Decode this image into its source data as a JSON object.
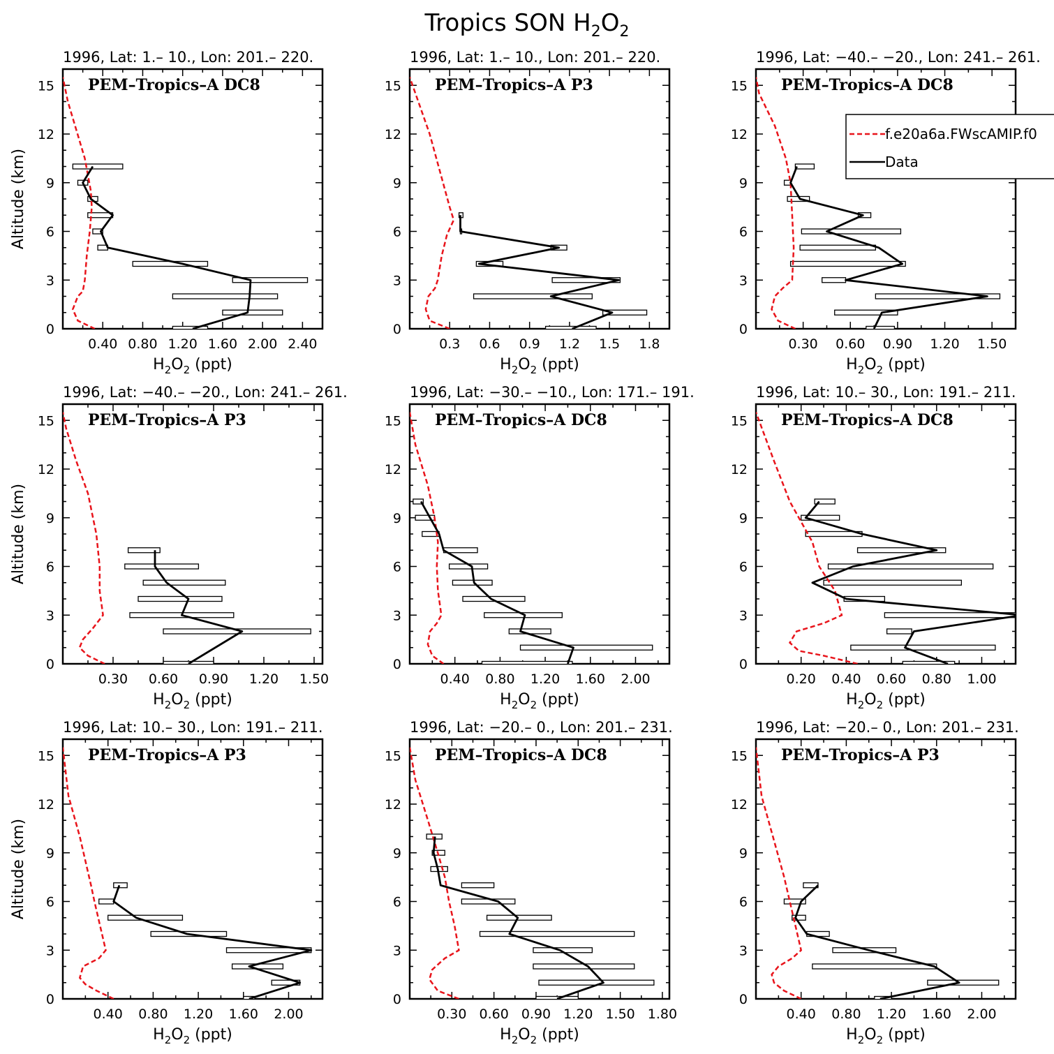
{
  "figure": {
    "title_main": "Tropics SON H",
    "title_sub1": "2",
    "title_mid": "O",
    "title_sub2": "2",
    "xlabel": {
      "pre": "H",
      "s1": "2",
      "mid": "O",
      "s2": "2",
      "post": " (ppt)"
    },
    "ylabel": "Altitude (km)",
    "legend": {
      "model": "f.e20a6a.FWscAMIP.f0",
      "data": "Data"
    },
    "colors": {
      "model": "#e8141b",
      "data": "#000000",
      "axis": "#000000"
    }
  },
  "chart_data": [
    {
      "type": "line",
      "subtitle": "1996, Lat:  1.–  10., Lon: 201.– 220.",
      "campaign": "PEM–Tropics–A DC8",
      "xticks": [
        0.4,
        0.8,
        1.2,
        1.6,
        2.0,
        2.4
      ],
      "xtick_labels": [
        "0.40",
        "0.80",
        "1.20",
        "1.60",
        "2.00",
        "2.40"
      ],
      "xlim": [
        0,
        2.6
      ],
      "ylim": [
        0,
        16
      ],
      "model": {
        "x": [
          0.32,
          0.15,
          0.1,
          0.15,
          0.2,
          0.22,
          0.24,
          0.27,
          0.29,
          0.28,
          0.22,
          0.05,
          0.0
        ],
        "y": [
          0,
          0.5,
          1.2,
          2.0,
          2.3,
          3.0,
          4.5,
          6.0,
          7.5,
          8.5,
          10.5,
          14.0,
          15.5
        ]
      },
      "data": {
        "y": [
          0,
          1,
          2,
          3,
          4,
          5,
          6,
          7,
          8,
          9,
          10
        ],
        "x": [
          1.3,
          1.85,
          1.87,
          1.88,
          1.2,
          0.45,
          0.38,
          0.5,
          0.28,
          0.2,
          0.3
        ],
        "box_lo": [
          1.1,
          1.6,
          1.1,
          1.7,
          0.7,
          0.35,
          0.3,
          0.25,
          0.25,
          0.15,
          0.1
        ],
        "box_hi": [
          1.45,
          2.2,
          2.15,
          2.45,
          1.45,
          0.45,
          0.4,
          0.5,
          0.35,
          0.25,
          0.6
        ]
      }
    },
    {
      "type": "line",
      "subtitle": "1996, Lat:  1.–  10., Lon: 201.– 220.",
      "campaign": "PEM–Tropics–A P3",
      "xticks": [
        0.3,
        0.6,
        0.9,
        1.2,
        1.5,
        1.8
      ],
      "xtick_labels": [
        "0.3",
        "0.6",
        "0.9",
        "1.2",
        "1.5",
        "1.8"
      ],
      "xlim": [
        0,
        1.95
      ],
      "ylim": [
        0,
        16
      ],
      "model": {
        "x": [
          0.3,
          0.15,
          0.12,
          0.14,
          0.19,
          0.21,
          0.24,
          0.28,
          0.33,
          0.3,
          0.25,
          0.15,
          0.0
        ],
        "y": [
          0,
          0.5,
          1.2,
          2.0,
          2.5,
          3.0,
          4.5,
          5.8,
          6.7,
          7.5,
          9.0,
          12.0,
          15.5
        ]
      },
      "data": {
        "y": [
          0,
          1,
          2,
          3,
          4,
          5,
          6,
          7
        ],
        "x": [
          1.22,
          1.52,
          1.06,
          1.57,
          0.52,
          1.12,
          0.38,
          0.38
        ],
        "box_lo": [
          1.02,
          1.45,
          0.48,
          1.07,
          0.5,
          1.06,
          0.38,
          0.37
        ],
        "box_hi": [
          1.4,
          1.78,
          1.37,
          1.58,
          0.7,
          1.18,
          0.38,
          0.4
        ]
      }
    },
    {
      "type": "line",
      "subtitle": "1996, Lat: −40.– −20., Lon: 241.– 261.",
      "campaign": "PEM–Tropics–A DC8",
      "xticks": [
        0.3,
        0.6,
        0.9,
        1.2,
        1.5
      ],
      "xtick_labels": [
        "0.30",
        "0.60",
        "0.90",
        "1.20",
        "1.50"
      ],
      "xlim": [
        0,
        1.65
      ],
      "ylim": [
        0,
        16
      ],
      "model": {
        "x": [
          0.25,
          0.14,
          0.1,
          0.12,
          0.17,
          0.23,
          0.24,
          0.23,
          0.22,
          0.19,
          0.12,
          0.02,
          0.0
        ],
        "y": [
          0,
          0.5,
          1.2,
          2.0,
          2.5,
          3.0,
          5.0,
          7.0,
          9.0,
          10.5,
          12.5,
          14.5,
          15.5
        ]
      },
      "data": {
        "y": [
          0,
          1,
          2,
          3,
          4,
          5,
          6,
          7,
          8,
          9,
          10
        ],
        "x": [
          0.75,
          0.8,
          1.47,
          0.57,
          0.93,
          0.78,
          0.45,
          0.68,
          0.28,
          0.22,
          0.26
        ],
        "box_lo": [
          0.7,
          0.5,
          0.76,
          0.42,
          0.22,
          0.28,
          0.29,
          0.65,
          0.2,
          0.18,
          0.25
        ],
        "box_hi": [
          0.88,
          0.9,
          1.55,
          0.57,
          0.95,
          0.76,
          0.92,
          0.73,
          0.34,
          0.22,
          0.37
        ]
      }
    },
    {
      "type": "line",
      "subtitle": "1996, Lat: −40.– −20., Lon: 241.– 261.",
      "campaign": "PEM–Tropics–A P3",
      "xticks": [
        0.3,
        0.6,
        0.9,
        1.2,
        1.5
      ],
      "xtick_labels": [
        "0.30",
        "0.60",
        "0.90",
        "1.20",
        "1.50"
      ],
      "xlim": [
        0,
        1.55
      ],
      "ylim": [
        0,
        16
      ],
      "model": {
        "x": [
          0.25,
          0.15,
          0.1,
          0.12,
          0.18,
          0.24,
          0.22,
          0.22,
          0.2,
          0.15,
          0.08,
          0.02,
          0.0
        ],
        "y": [
          0,
          0.5,
          1.0,
          1.5,
          2.2,
          3.0,
          4.5,
          6.0,
          8.0,
          10.5,
          12.5,
          14.5,
          15.5
        ]
      },
      "data": {
        "y": [
          0,
          2,
          3,
          4,
          5,
          6,
          7
        ],
        "x": [
          0.75,
          1.07,
          0.71,
          0.75,
          0.62,
          0.55,
          0.55
        ],
        "box_lo": [
          0.6,
          0.6,
          0.4,
          0.45,
          0.48,
          0.37,
          0.39
        ],
        "box_hi": [
          0.9,
          1.48,
          1.02,
          0.95,
          0.97,
          0.81,
          0.58
        ]
      }
    },
    {
      "type": "line",
      "subtitle": "1996, Lat: −30.– −10., Lon: 171.– 191.",
      "campaign": "PEM–Tropics–A DC8",
      "xticks": [
        0.4,
        0.8,
        1.2,
        1.6,
        2.0
      ],
      "xtick_labels": [
        "0.40",
        "0.80",
        "1.20",
        "1.60",
        "2.00"
      ],
      "xlim": [
        0,
        2.3
      ],
      "ylim": [
        0,
        16
      ],
      "model": {
        "x": [
          0.3,
          0.2,
          0.16,
          0.18,
          0.24,
          0.28,
          0.25,
          0.24,
          0.25,
          0.22,
          0.16,
          0.05,
          0.0
        ],
        "y": [
          0,
          0.5,
          1.2,
          2.0,
          2.5,
          3.0,
          4.5,
          6.0,
          7.5,
          9.0,
          11.0,
          13.5,
          15.5
        ]
      },
      "data": {
        "y": [
          0,
          1,
          2,
          3,
          4,
          5,
          6,
          7,
          8,
          9,
          10
        ],
        "x": [
          1.4,
          1.45,
          0.98,
          1.02,
          0.72,
          0.57,
          0.55,
          0.3,
          0.26,
          0.18,
          0.1
        ],
        "box_lo": [
          0.64,
          0.98,
          0.88,
          0.66,
          0.47,
          0.38,
          0.35,
          0.3,
          0.11,
          0.05,
          0.03
        ],
        "box_hi": [
          1.44,
          2.15,
          1.25,
          1.35,
          1.02,
          0.73,
          0.69,
          0.6,
          0.26,
          0.22,
          0.12
        ]
      }
    },
    {
      "type": "line",
      "subtitle": "1996, Lat:  10.–  30., Lon: 191.– 211.",
      "campaign": "PEM–Tropics–A DC8",
      "xticks": [
        0.2,
        0.4,
        0.6,
        0.8,
        1.0
      ],
      "xtick_labels": [
        "0.20",
        "0.40",
        "0.60",
        "0.80",
        "1.00"
      ],
      "xlim": [
        0,
        1.15
      ],
      "ylim": [
        0,
        16
      ],
      "model": {
        "x": [
          0.45,
          0.3,
          0.19,
          0.15,
          0.18,
          0.3,
          0.38,
          0.35,
          0.28,
          0.25,
          0.15,
          0.08,
          0.0
        ],
        "y": [
          0,
          0.5,
          0.8,
          1.3,
          2.0,
          2.5,
          3.0,
          4.5,
          6.0,
          7.5,
          10.0,
          12.5,
          15.5
        ]
      },
      "data": {
        "y": [
          0,
          1,
          2,
          3,
          4,
          5,
          6,
          7,
          8,
          9,
          10
        ],
        "x": [
          0.85,
          0.66,
          0.7,
          1.18,
          0.4,
          0.25,
          0.43,
          0.8,
          0.47,
          0.22,
          0.28
        ],
        "box_lo": [
          0.65,
          0.42,
          0.58,
          0.57,
          0.39,
          0.3,
          0.32,
          0.45,
          0.22,
          0.2,
          0.26
        ],
        "box_hi": [
          0.88,
          1.06,
          0.69,
          1.18,
          0.57,
          0.91,
          1.05,
          0.84,
          0.47,
          0.37,
          0.35
        ]
      }
    },
    {
      "type": "line",
      "subtitle": "1996, Lat:  10.–  30., Lon: 191.– 211.",
      "campaign": "PEM–Tropics–A P3",
      "xticks": [
        0.4,
        0.8,
        1.2,
        1.6,
        2.0
      ],
      "xtick_labels": [
        "0.40",
        "0.80",
        "1.20",
        "1.60",
        "2.00"
      ],
      "xlim": [
        0,
        2.3
      ],
      "ylim": [
        0,
        16
      ],
      "model": {
        "x": [
          0.45,
          0.3,
          0.2,
          0.15,
          0.18,
          0.32,
          0.38,
          0.33,
          0.28,
          0.25,
          0.15,
          0.05,
          0.0
        ],
        "y": [
          0,
          0.5,
          0.9,
          1.3,
          2.0,
          2.5,
          3.0,
          4.5,
          6.0,
          7.0,
          10.0,
          12.5,
          15.5
        ]
      },
      "data": {
        "y": [
          0,
          1,
          2,
          3,
          4,
          5,
          6,
          7
        ],
        "x": [
          1.65,
          2.1,
          1.65,
          2.2,
          1.1,
          0.65,
          0.45,
          0.5
        ],
        "box_lo": [
          1.6,
          1.85,
          1.5,
          1.45,
          0.78,
          0.4,
          0.32,
          0.45
        ],
        "box_hi": [
          1.7,
          2.1,
          1.95,
          2.2,
          1.45,
          1.06,
          0.45,
          0.57
        ]
      }
    },
    {
      "type": "line",
      "subtitle": "1996, Lat: −20.–  0., Lon: 201.– 231.",
      "campaign": "PEM–Tropics–A DC8",
      "xticks": [
        0.3,
        0.6,
        0.9,
        1.2,
        1.5,
        1.8
      ],
      "xtick_labels": [
        "0.30",
        "0.60",
        "0.90",
        "1.20",
        "1.50",
        "1.80"
      ],
      "xlim": [
        0,
        1.85
      ],
      "ylim": [
        0,
        16
      ],
      "model": {
        "x": [
          0.35,
          0.2,
          0.14,
          0.16,
          0.25,
          0.35,
          0.32,
          0.28,
          0.25,
          0.2,
          0.13,
          0.04,
          0.0
        ],
        "y": [
          0,
          0.5,
          1.2,
          1.8,
          2.5,
          3.0,
          4.5,
          6.0,
          7.5,
          9.0,
          11.0,
          13.5,
          15.5
        ]
      },
      "data": {
        "y": [
          0,
          1,
          2,
          3,
          4,
          5,
          6,
          7,
          8,
          9,
          10
        ],
        "x": [
          1.05,
          1.38,
          1.27,
          1.07,
          0.71,
          0.77,
          0.63,
          0.22,
          0.2,
          0.17,
          0.18
        ],
        "box_lo": [
          0.9,
          0.92,
          0.88,
          0.88,
          0.5,
          0.55,
          0.37,
          0.37,
          0.15,
          0.16,
          0.12
        ],
        "box_hi": [
          1.2,
          1.74,
          1.6,
          1.3,
          1.6,
          1.01,
          0.75,
          0.6,
          0.27,
          0.25,
          0.23
        ]
      }
    },
    {
      "type": "line",
      "subtitle": "1996, Lat: −20.–  0., Lon: 201.– 231.",
      "campaign": "PEM–Tropics–A P3",
      "xticks": [
        0.4,
        0.8,
        1.2,
        1.6,
        2.0
      ],
      "xtick_labels": [
        "0.40",
        "0.80",
        "1.20",
        "1.60",
        "2.00"
      ],
      "xlim": [
        0,
        2.3
      ],
      "ylim": [
        0,
        16
      ],
      "model": {
        "x": [
          0.4,
          0.25,
          0.16,
          0.14,
          0.2,
          0.32,
          0.4,
          0.35,
          0.3,
          0.25,
          0.15,
          0.05,
          0.0
        ],
        "y": [
          0,
          0.5,
          1.0,
          1.5,
          2.0,
          2.5,
          3.0,
          4.5,
          6.0,
          7.5,
          10.0,
          12.5,
          15.5
        ]
      },
      "data": {
        "y": [
          0,
          1,
          2,
          3,
          4,
          5,
          6,
          7
        ],
        "x": [
          1.1,
          1.8,
          1.58,
          1.0,
          0.45,
          0.35,
          0.4,
          0.55
        ],
        "box_lo": [
          1.05,
          1.52,
          0.5,
          0.68,
          0.45,
          0.32,
          0.25,
          0.42
        ],
        "box_hi": [
          1.2,
          2.15,
          1.6,
          1.24,
          0.65,
          0.44,
          0.44,
          0.55
        ]
      }
    }
  ]
}
